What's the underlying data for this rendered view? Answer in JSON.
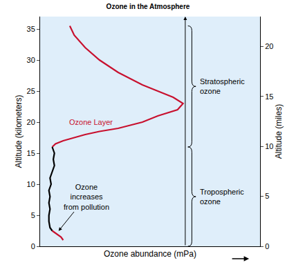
{
  "chart_data": {
    "type": "line",
    "title": "Ozone in the Atmosphere",
    "x_label": "Ozone abundance (mPa)",
    "y_label": "Altitude (kilometers)",
    "y2_label": "Altitude (miles)",
    "xlim": [
      0,
      20
    ],
    "ylim": [
      0,
      37
    ],
    "yticks": [
      0,
      5,
      10,
      15,
      20,
      25,
      30,
      35
    ],
    "y2lim": [
      0,
      23
    ],
    "y2ticks": [
      0,
      5,
      10,
      15,
      20
    ],
    "tick_labels": "y",
    "grid": false,
    "series": [
      {
        "color": "#c8102e",
        "x": [
          2.7,
          3.1,
          4.1,
          5.4,
          7.1,
          9.3,
          10.7,
          12.1,
          13.0,
          12.5,
          10.7,
          10.0,
          9.3,
          8.2,
          7.1,
          5.4,
          4.1,
          2.1,
          1.4,
          1.1
        ],
        "values": [
          35.5,
          34,
          32,
          30,
          28,
          26,
          25,
          24,
          23,
          22,
          21,
          20.5,
          20,
          19.5,
          19,
          18.5,
          18,
          17,
          16.5,
          16
        ]
      },
      {
        "color": "#000000",
        "x": [
          1.1,
          1.3,
          1.2,
          1.3,
          1.1,
          0.9,
          1.0,
          0.8,
          0.9,
          0.8,
          0.9,
          0.8,
          0.8,
          0.9,
          1.1
        ],
        "values": [
          16,
          15,
          14,
          13,
          12,
          11,
          10,
          9,
          8,
          7,
          6,
          5,
          4,
          3,
          2.5
        ]
      },
      {
        "color": "#c8102e",
        "x": [
          1.1,
          1.5,
          1.9,
          2.1
        ],
        "values": [
          2.5,
          2,
          1.5,
          1
        ]
      }
    ],
    "annotations": [
      {
        "text": "Ozone Layer",
        "x": 4.6,
        "y": 20,
        "color": "#c8102e"
      },
      {
        "text": "Ozone\nincreases\nfrom pollution",
        "x": 4.2,
        "y": 8,
        "arrow_x": 1.6,
        "arrow_y": 2.3,
        "color": "#000000"
      }
    ],
    "brace_labels": [
      "Stratospheric\nozone",
      "Tropospheric\nozone"
    ]
  }
}
